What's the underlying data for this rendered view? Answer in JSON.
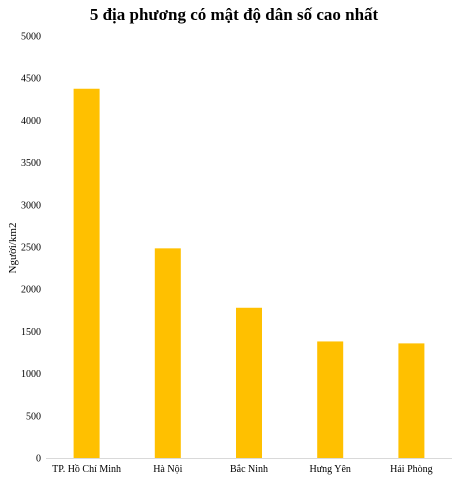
{
  "chart_data": {
    "type": "bar",
    "title": "5 địa phương có mật độ dân số cao nhất",
    "xlabel": "",
    "ylabel": "Người/km2",
    "categories": [
      "TP. Hồ Chí Minh",
      "Hà Nội",
      "Bắc Ninh",
      "Hưng Yên",
      "Hải Phòng"
    ],
    "values": [
      4375,
      2484,
      1780,
      1381,
      1358
    ],
    "ylim": [
      0,
      5000
    ],
    "yticks": [
      "0",
      "500",
      "1000",
      "1500",
      "2000",
      "2500",
      "3000",
      "3500",
      "4000",
      "4500",
      "5000"
    ],
    "bar_color": "#FFC000",
    "grid": false,
    "legend": "none"
  }
}
